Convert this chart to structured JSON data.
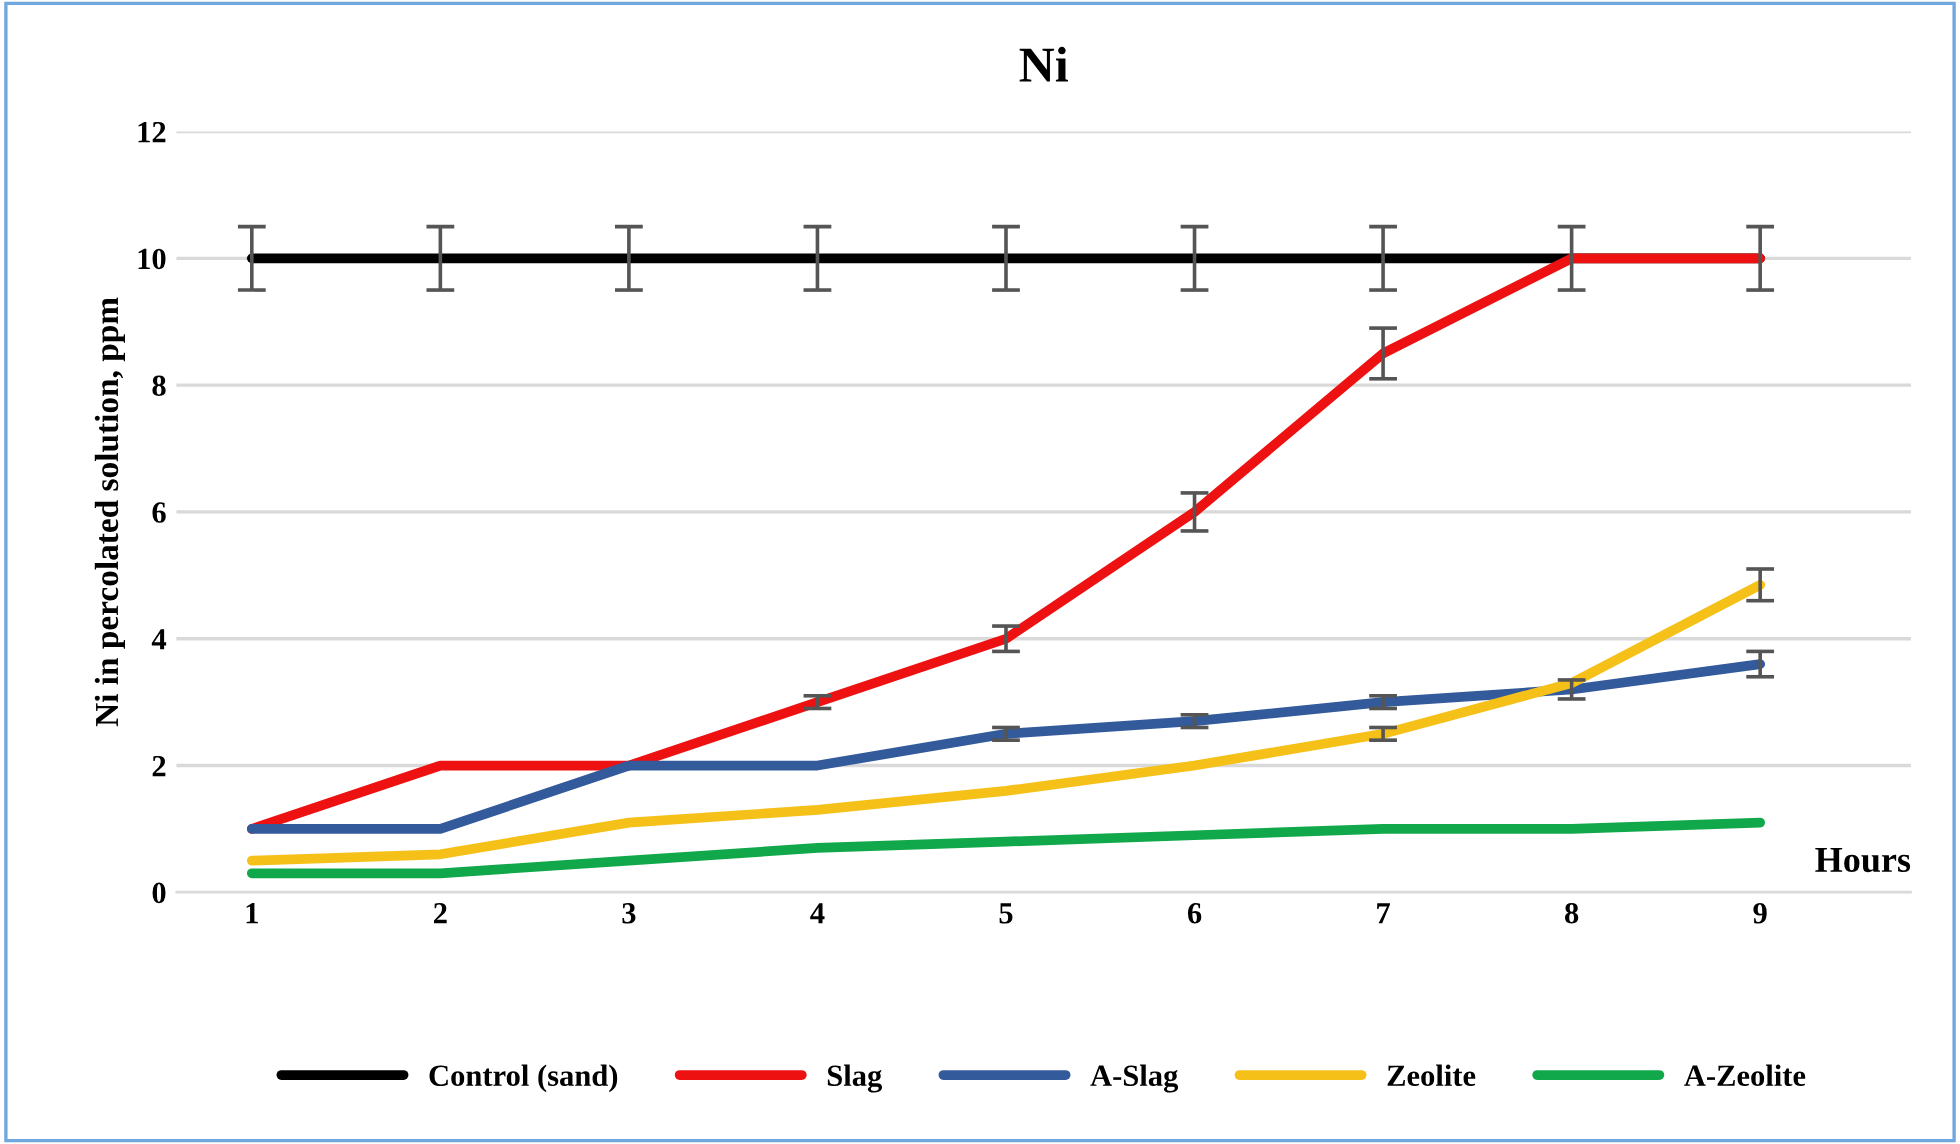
{
  "chart_data": {
    "type": "line",
    "title": "Ni",
    "xlabel": "Hours",
    "ylabel": "Ni in percolated solution, ppm",
    "categories": [
      "1",
      "2",
      "3",
      "4",
      "5",
      "6",
      "7",
      "8",
      "9"
    ],
    "series": [
      {
        "name": "Control (sand)",
        "color": "#000000",
        "values": [
          10,
          10,
          10,
          10,
          10,
          10,
          10,
          10,
          10
        ],
        "errors": [
          0.5,
          0.5,
          0.5,
          0.5,
          0.5,
          0.5,
          0.5,
          0.5,
          0.5
        ]
      },
      {
        "name": "Slag",
        "color": "#ee1111",
        "values": [
          1,
          2,
          2,
          3,
          4,
          6,
          8.5,
          10,
          10
        ],
        "errors": [
          null,
          null,
          null,
          0.1,
          0.2,
          0.3,
          0.4,
          null,
          null
        ]
      },
      {
        "name": "A-Slag",
        "color": "#335a9a",
        "values": [
          1,
          1,
          2,
          2,
          2.5,
          2.7,
          3.0,
          3.2,
          3.6
        ],
        "errors": [
          null,
          null,
          null,
          null,
          0.1,
          0.1,
          0.1,
          0.15,
          0.2
        ]
      },
      {
        "name": "Zeolite",
        "color": "#f5c018",
        "values": [
          0.5,
          0.6,
          1.1,
          1.3,
          1.6,
          2.0,
          2.5,
          3.3,
          4.85
        ],
        "errors": [
          null,
          null,
          null,
          null,
          null,
          null,
          0.1,
          null,
          0.25
        ]
      },
      {
        "name": "A-Zeolite",
        "color": "#10a84a",
        "values": [
          0.3,
          0.3,
          0.5,
          0.7,
          0.8,
          0.9,
          1.0,
          1.0,
          1.1
        ]
      }
    ],
    "ylim": [
      0,
      12
    ],
    "yticks": [
      0,
      2,
      4,
      6,
      8,
      10,
      12
    ],
    "grid": "y",
    "legend": "bottom",
    "marker": "none",
    "line_style": "solid"
  }
}
